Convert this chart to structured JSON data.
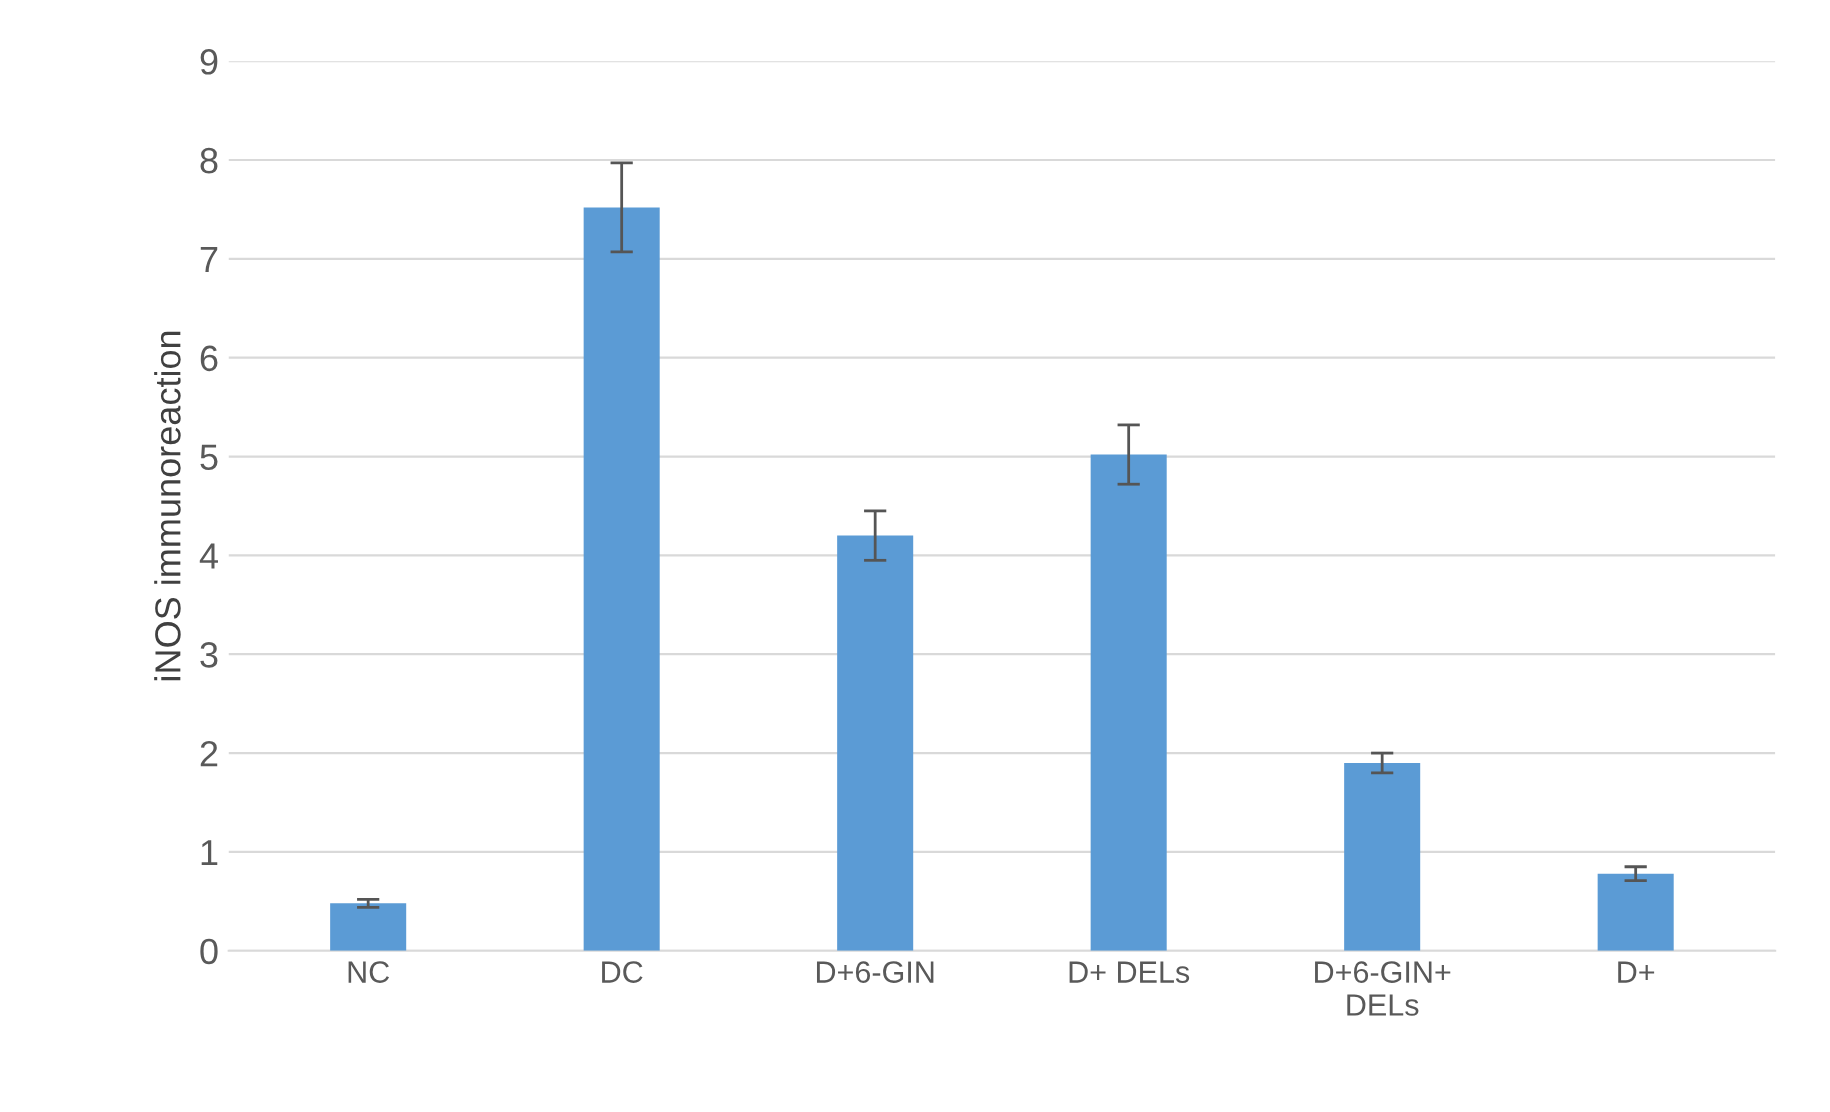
{
  "chart_data": {
    "type": "bar",
    "ylabel": "iNOS immunoreaction",
    "categories": [
      "NC",
      "DC",
      "D+6-GIN",
      "D+ DELs",
      "D+6-GIN+\nDELs",
      "D+"
    ],
    "series": [
      {
        "color": "#5b9bd5",
        "values": [
          0.48,
          7.52,
          4.2,
          5.02,
          1.9,
          0.78
        ],
        "errors": [
          0.04,
          0.45,
          0.25,
          0.3,
          0.1,
          0.07
        ]
      }
    ],
    "ylim": [
      0,
      9
    ],
    "yticks": [
      0,
      1,
      2,
      3,
      4,
      5,
      6,
      7,
      8,
      9
    ],
    "grid": "y",
    "legend": false
  }
}
